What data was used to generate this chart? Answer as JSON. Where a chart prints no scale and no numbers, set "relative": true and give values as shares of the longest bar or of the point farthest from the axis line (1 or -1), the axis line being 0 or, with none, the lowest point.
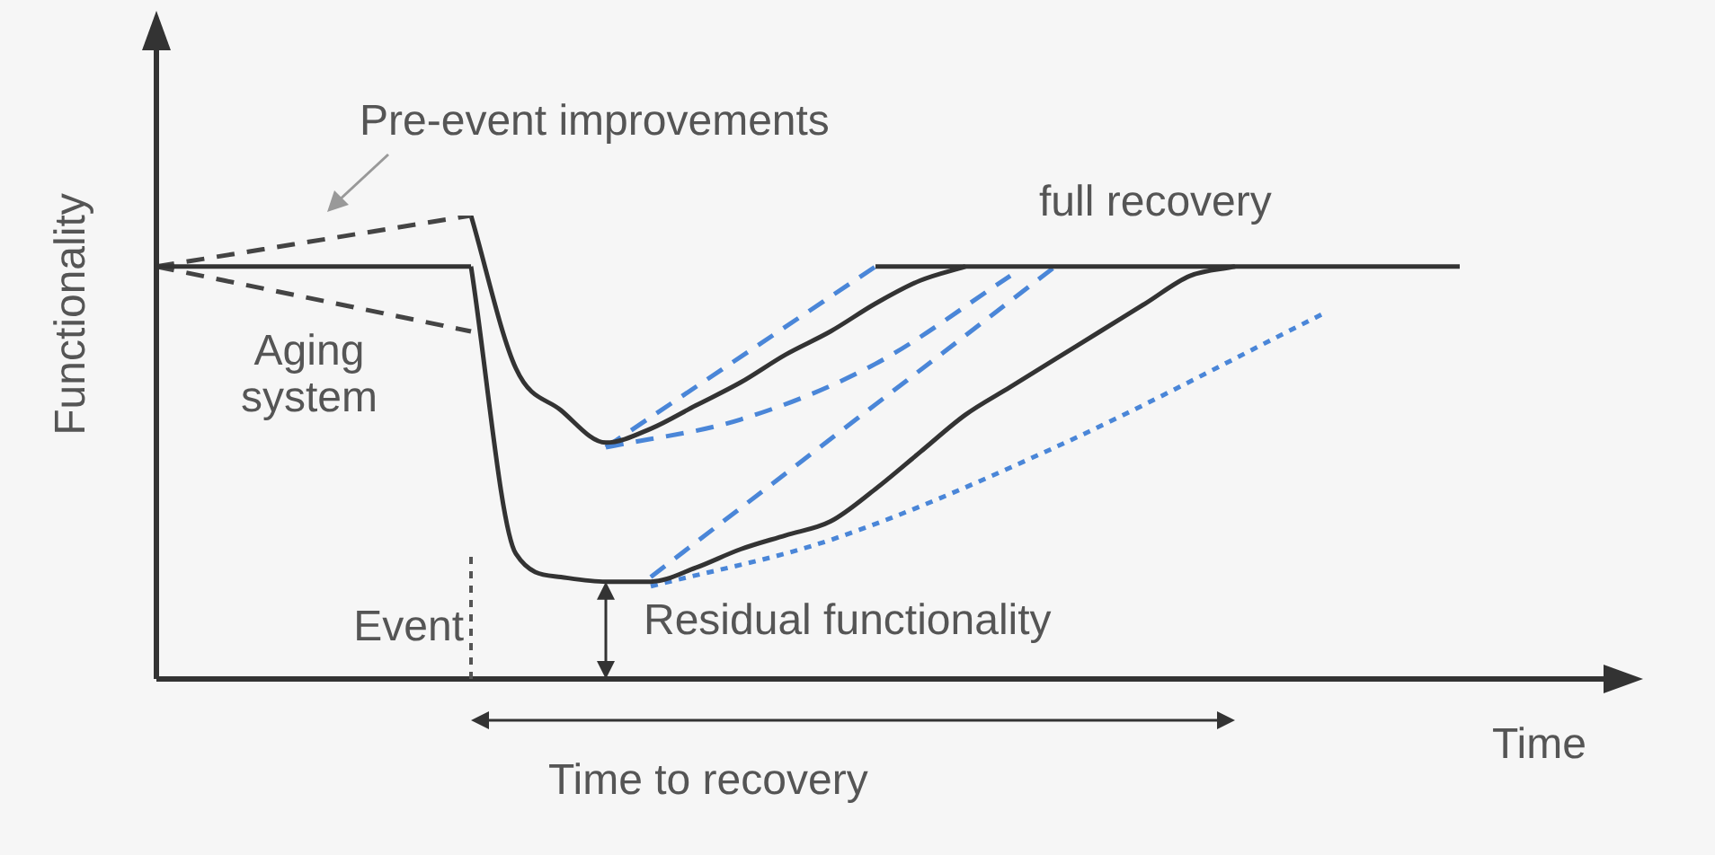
{
  "chart_data": {
    "type": "line",
    "relative": true,
    "xlabel": "Time",
    "ylabel": "Functionality",
    "annotations": [
      "Pre-event improvements",
      "Aging system",
      "full recovery",
      "Residual functionality",
      "Time to recovery"
    ],
    "ref_lines": [
      {
        "axis": "x",
        "label": "Event",
        "line_style": "dotted",
        "color": "#555555"
      }
    ],
    "categories": [
      null,
      null,
      null,
      null,
      null,
      null,
      null,
      null,
      null,
      null,
      null,
      null,
      null,
      null,
      null,
      null,
      null,
      null,
      null,
      null,
      null,
      null,
      null,
      null,
      null,
      null,
      null,
      null,
      null,
      null
    ],
    "series": [
      {
        "color": "#333333",
        "line_style": "solid",
        "values": [
          0.89,
          0.89,
          0.89,
          0.89,
          0.89,
          0.89,
          0.89,
          0.89,
          null,
          null,
          null,
          null,
          null,
          null,
          null,
          null,
          null,
          null,
          null,
          null,
          null,
          null,
          null,
          null,
          null,
          null,
          null,
          null,
          null,
          null
        ]
      },
      {
        "color": "#444444",
        "line_style": "dashed",
        "values": [
          0.89,
          null,
          null,
          null,
          null,
          null,
          null,
          1.0,
          null,
          null,
          null,
          null,
          null,
          null,
          null,
          null,
          null,
          null,
          null,
          null,
          null,
          null,
          null,
          null,
          null,
          null,
          null,
          null,
          null,
          null
        ]
      },
      {
        "color": "#444444",
        "line_style": "dashed",
        "values": [
          0.89,
          null,
          null,
          null,
          null,
          null,
          null,
          0.75,
          null,
          null,
          null,
          null,
          null,
          null,
          null,
          null,
          null,
          null,
          null,
          null,
          null,
          null,
          null,
          null,
          null,
          null,
          null,
          null,
          null,
          null
        ]
      },
      {
        "color": "#333333",
        "line_style": "solid",
        "values": [
          null,
          null,
          null,
          null,
          null,
          null,
          null,
          1.0,
          0.67,
          0.58,
          0.51,
          0.54,
          0.59,
          0.64,
          0.7,
          0.75,
          0.81,
          0.86,
          0.89,
          null,
          null,
          null,
          null,
          null,
          null,
          null,
          null,
          null,
          null,
          null
        ]
      },
      {
        "color": "#333333",
        "line_style": "solid",
        "values": [
          null,
          null,
          null,
          null,
          null,
          null,
          null,
          0.89,
          0.27,
          0.22,
          0.21,
          0.21,
          0.24,
          0.28,
          0.31,
          0.34,
          0.41,
          0.49,
          0.57,
          0.63,
          0.69,
          0.75,
          0.81,
          0.87,
          0.89,
          null,
          null,
          null,
          null,
          null
        ]
      },
      {
        "color": "#333333",
        "line_style": "solid",
        "values": [
          null,
          null,
          null,
          null,
          null,
          null,
          null,
          null,
          null,
          null,
          null,
          null,
          null,
          null,
          null,
          null,
          0.89,
          0.89,
          0.89,
          0.89,
          0.89,
          0.89,
          0.89,
          0.89,
          0.89,
          0.89,
          0.89,
          0.89,
          0.89,
          0.89
        ]
      },
      {
        "color": "#4a86d8",
        "line_style": "dashed",
        "values": [
          null,
          null,
          null,
          null,
          null,
          null,
          null,
          null,
          null,
          null,
          0.5,
          null,
          null,
          null,
          null,
          null,
          0.89,
          null,
          null,
          null,
          null,
          null,
          null,
          null,
          null,
          null,
          null,
          null,
          null,
          null
        ]
      },
      {
        "color": "#4a86d8",
        "line_style": "dashed",
        "values": [
          null,
          null,
          null,
          null,
          null,
          null,
          null,
          null,
          null,
          null,
          0.5,
          null,
          null,
          0.56,
          null,
          null,
          0.68,
          null,
          null,
          0.87,
          null,
          null,
          null,
          null,
          null,
          null,
          null,
          null,
          null,
          null
        ]
      },
      {
        "color": "#4a86d8",
        "line_style": "dashed",
        "values": [
          null,
          null,
          null,
          null,
          null,
          null,
          null,
          null,
          null,
          null,
          null,
          0.22,
          null,
          null,
          null,
          null,
          null,
          null,
          null,
          null,
          0.89,
          null,
          null,
          null,
          null,
          null,
          null,
          null,
          null,
          null
        ]
      },
      {
        "color": "#4a86d8",
        "line_style": "dotted",
        "values": [
          null,
          null,
          null,
          null,
          null,
          null,
          null,
          null,
          null,
          null,
          null,
          0.2,
          null,
          null,
          null,
          0.3,
          null,
          null,
          null,
          null,
          0.5,
          null,
          null,
          null,
          null,
          null,
          0.79,
          null,
          null,
          null
        ]
      }
    ],
    "legend": false,
    "marker": "none",
    "tick_labels": false
  }
}
